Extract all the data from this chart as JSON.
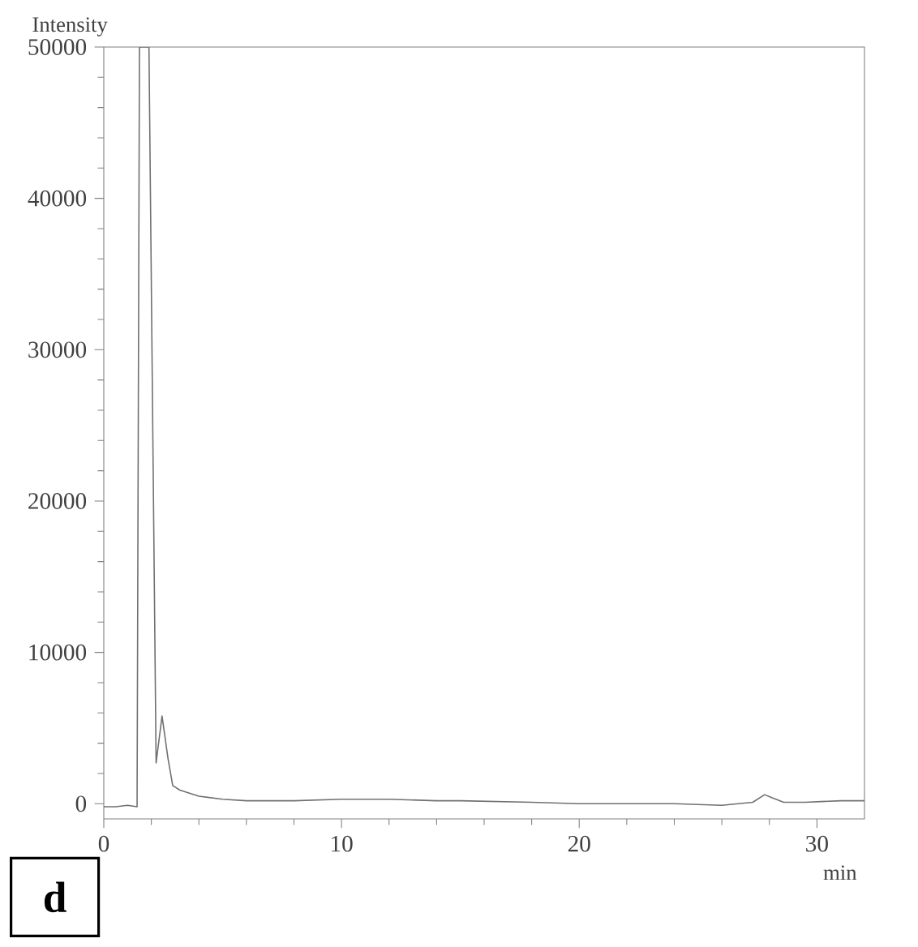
{
  "chart_data": {
    "type": "line",
    "xlabel": "min",
    "ylabel": "Intensity",
    "annotations": [
      "d"
    ],
    "series": [
      {
        "color": "#707070",
        "x": [
          0,
          0.5,
          1.0,
          1.4,
          1.5,
          1.9,
          2.2,
          2.45,
          2.7,
          2.9,
          3.2,
          3.6,
          4.0,
          5.0,
          6.0,
          8.0,
          10.0,
          12.0,
          14.0,
          15.0,
          18.0,
          20.0,
          22.0,
          24.0,
          26.0,
          27.3,
          27.8,
          28.1,
          28.6,
          29.5,
          31.0,
          32.0
        ],
        "values": [
          -200,
          -200,
          -100,
          -200,
          50000,
          50000,
          2700,
          5800,
          3000,
          1200,
          900,
          700,
          500,
          300,
          200,
          200,
          300,
          300,
          200,
          200,
          100,
          0,
          0,
          0,
          -100,
          100,
          600,
          400,
          100,
          100,
          200,
          200
        ]
      }
    ],
    "xlim": [
      0,
      32
    ],
    "ylim": [
      -1000,
      50000
    ],
    "xticks": [
      0,
      10,
      20,
      30
    ],
    "yticks": [
      0,
      10000,
      20000,
      30000,
      40000,
      50000
    ],
    "grid": false,
    "marker": "none",
    "line_style": "solid"
  }
}
